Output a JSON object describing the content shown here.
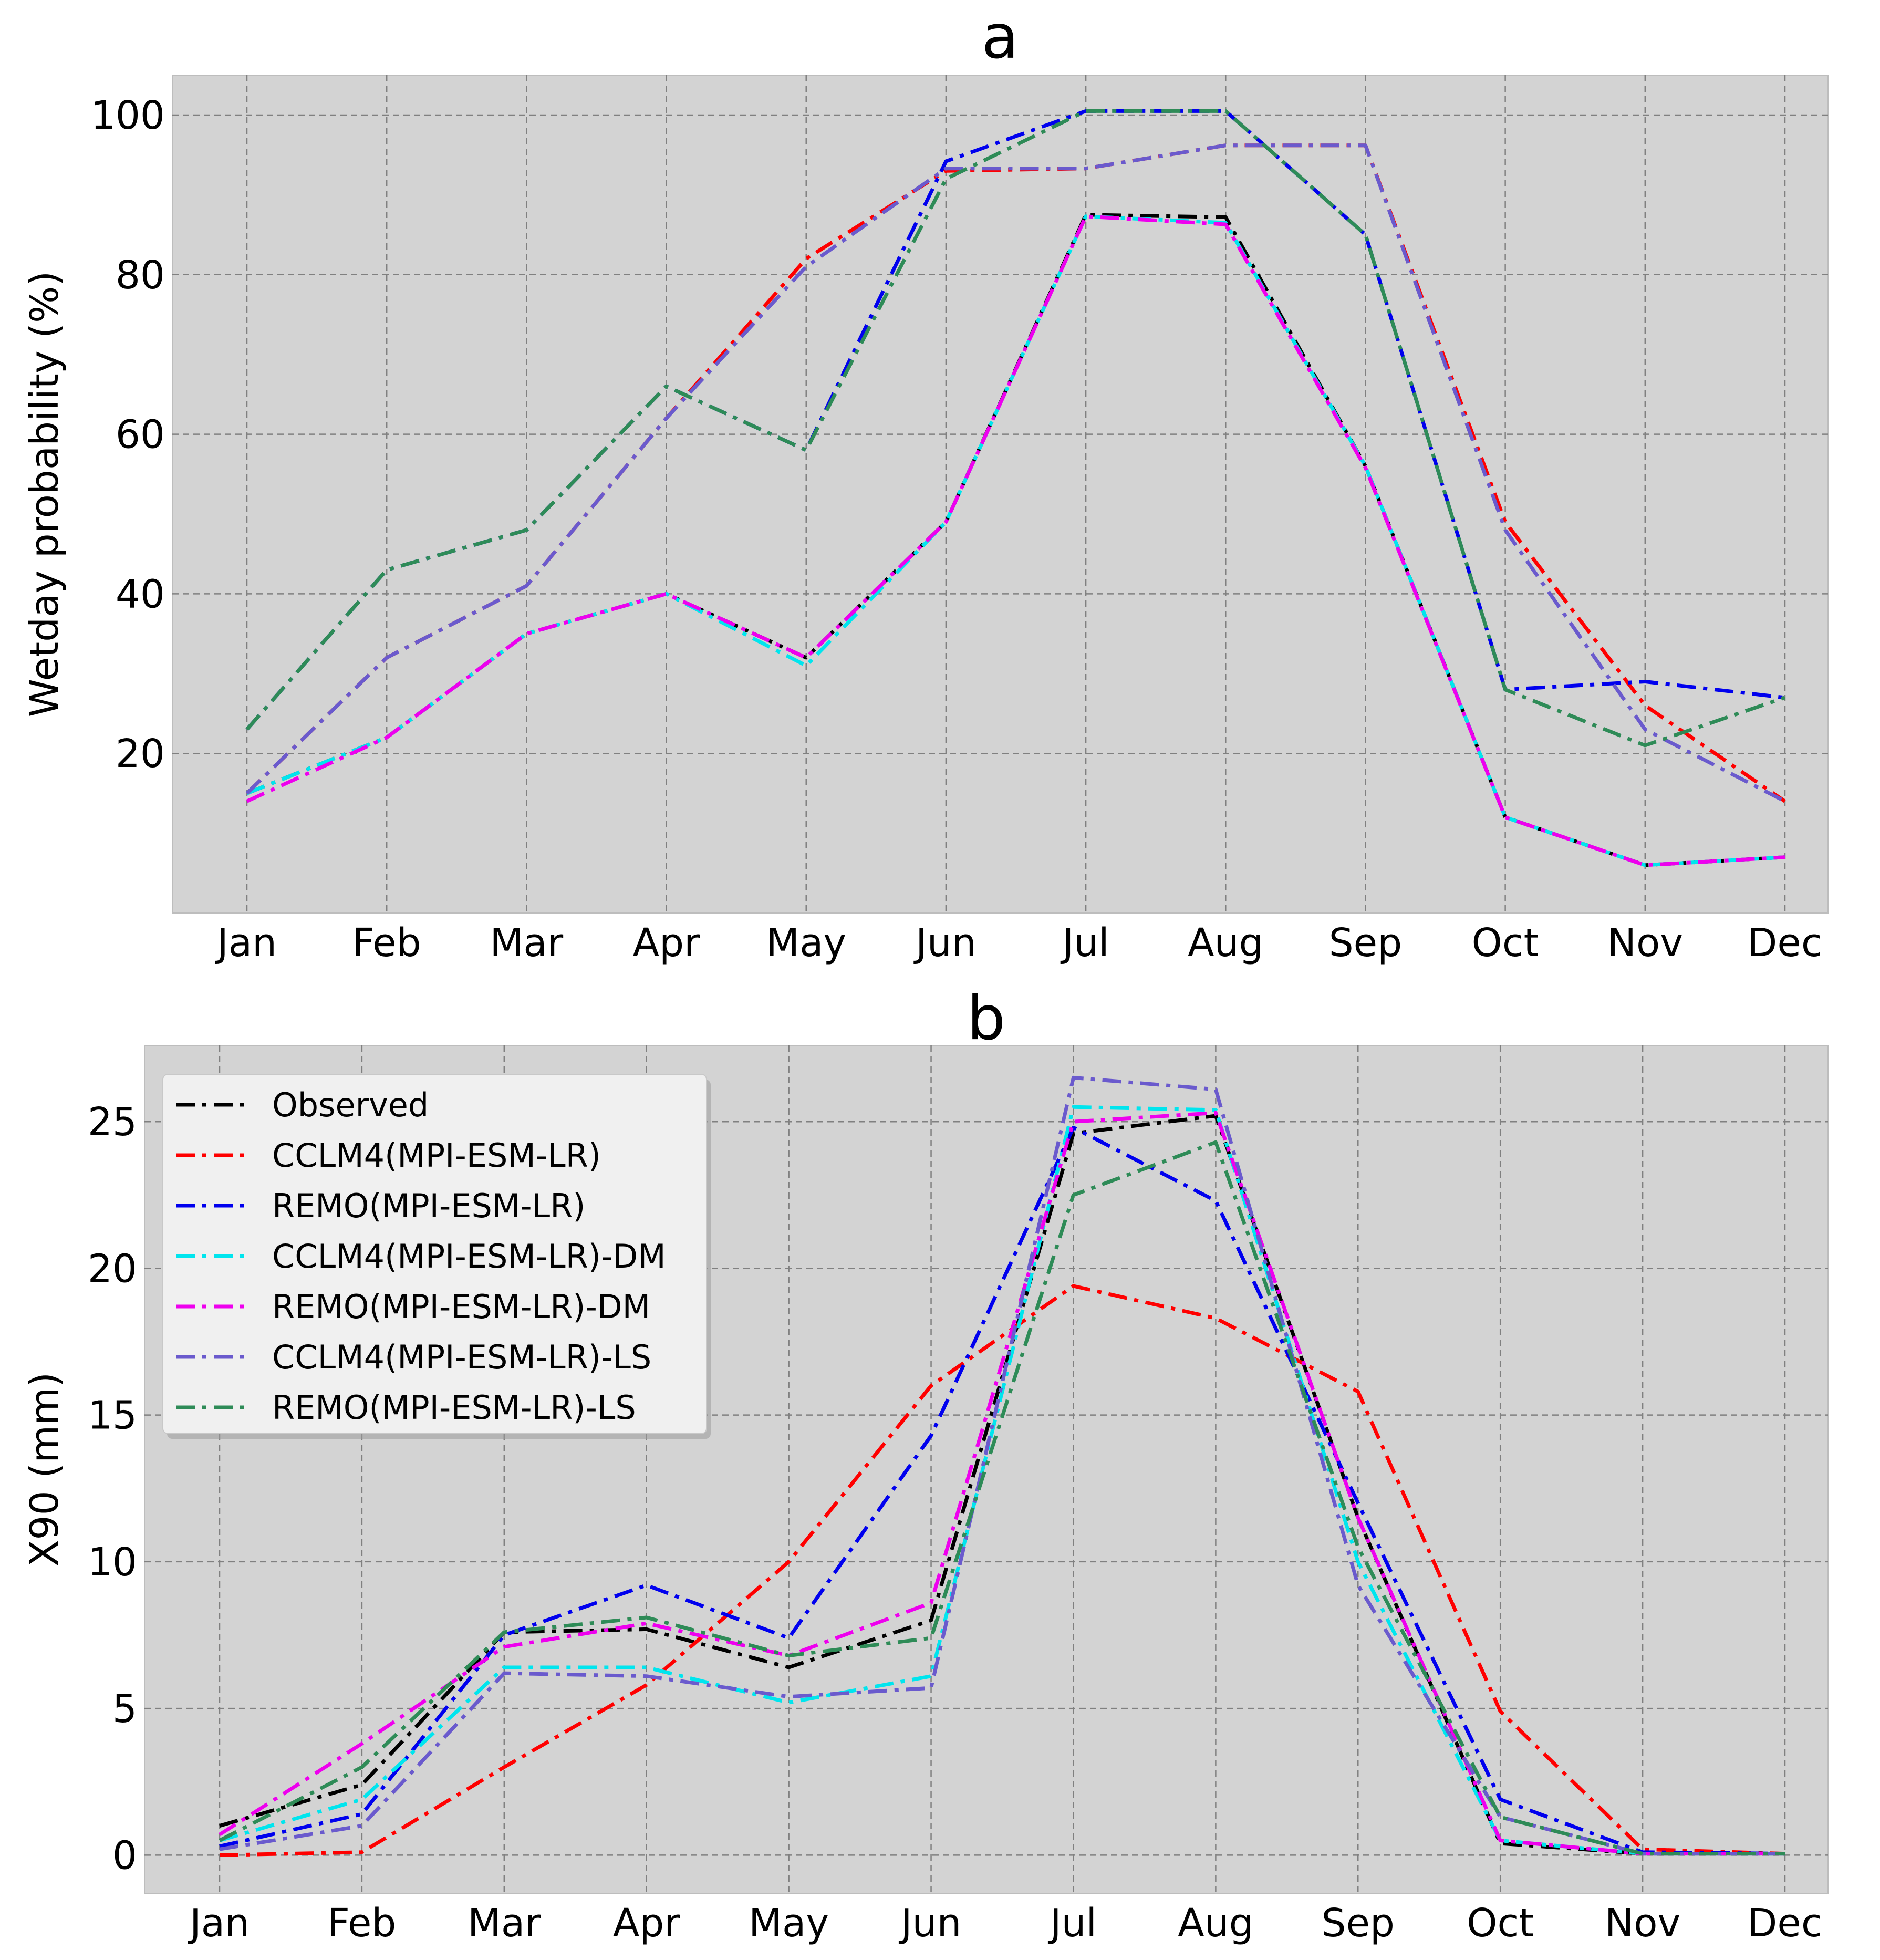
{
  "chart_data": [
    {
      "type": "line",
      "panel": "a",
      "title": "a",
      "xlabel": "",
      "ylabel": "Wetday probability (%)",
      "categories": [
        "Jan",
        "Feb",
        "Mar",
        "Apr",
        "May",
        "Jun",
        "Jul",
        "Aug",
        "Sep",
        "Oct",
        "Nov",
        "Dec"
      ],
      "ylim": [
        0,
        105
      ],
      "yticks": [
        20,
        40,
        60,
        80,
        100
      ],
      "grid": true,
      "series": [
        {
          "name": "Observed",
          "color": "#000000",
          "values": [
            15,
            22,
            35,
            40,
            32,
            49,
            87.5,
            87.2,
            56,
            12,
            6,
            7
          ]
        },
        {
          "name": "CCLM4(MPI-ESM-LR)",
          "color": "#ff0000",
          "values": [
            15,
            32,
            41,
            62,
            82,
            93,
            93.3,
            96.2,
            96.2,
            49,
            26,
            14
          ]
        },
        {
          "name": "REMO(MPI-ESM-LR)",
          "color": "#0000ee",
          "values": [
            23,
            43,
            48,
            66,
            58,
            94.2,
            100.5,
            100.5,
            85,
            28,
            29,
            27
          ]
        },
        {
          "name": "CCLM4(MPI-ESM-LR)-DM",
          "color": "#00e5ee",
          "values": [
            15,
            22,
            35,
            40,
            31,
            49,
            87.3,
            86.5,
            56,
            12,
            6,
            7
          ]
        },
        {
          "name": "REMO(MPI-ESM-LR)-DM",
          "color": "#ee00ee",
          "values": [
            14,
            22,
            35,
            40,
            32,
            49,
            87.3,
            86.3,
            55.8,
            12,
            6,
            7
          ]
        },
        {
          "name": "CCLM4(MPI-ESM-LR)-LS",
          "color": "#6a5acd",
          "values": [
            15,
            32,
            41,
            62,
            81,
            93.3,
            93.3,
            96.2,
            96.2,
            48,
            23,
            14
          ]
        },
        {
          "name": "REMO(MPI-ESM-LR)-LS",
          "color": "#2e8b57",
          "values": [
            23,
            43,
            48,
            66,
            58,
            92,
            100.5,
            100.5,
            85,
            28,
            21,
            27
          ]
        }
      ]
    },
    {
      "type": "line",
      "panel": "b",
      "title": "b",
      "xlabel": "",
      "ylabel": "X90 (mm)",
      "categories": [
        "Jan",
        "Feb",
        "Mar",
        "Apr",
        "May",
        "Jun",
        "Jul",
        "Aug",
        "Sep",
        "Oct",
        "Nov",
        "Dec"
      ],
      "ylim": [
        -1.3,
        27.6
      ],
      "yticks": [
        0,
        5,
        10,
        15,
        20,
        25
      ],
      "grid": true,
      "legend": "top-left",
      "series": [
        {
          "name": "Observed",
          "color": "#000000",
          "values": [
            1.0,
            2.4,
            7.6,
            7.7,
            6.4,
            8.0,
            24.6,
            25.2,
            11.5,
            0.4,
            0.05,
            0.05
          ]
        },
        {
          "name": "CCLM4(MPI-ESM-LR)",
          "color": "#ff0000",
          "values": [
            0.0,
            0.1,
            3.0,
            5.8,
            10.0,
            16.0,
            19.4,
            18.3,
            15.8,
            4.9,
            0.2,
            0.05
          ]
        },
        {
          "name": "REMO(MPI-ESM-LR)",
          "color": "#0000ee",
          "values": [
            0.3,
            1.4,
            7.5,
            9.2,
            7.4,
            14.3,
            24.8,
            22.3,
            12.0,
            1.9,
            0.1,
            0.05
          ]
        },
        {
          "name": "CCLM4(MPI-ESM-LR)-DM",
          "color": "#00e5ee",
          "values": [
            0.5,
            1.9,
            6.4,
            6.4,
            5.2,
            6.1,
            25.5,
            25.4,
            10.0,
            0.5,
            0.05,
            0.05
          ]
        },
        {
          "name": "REMO(MPI-ESM-LR)-DM",
          "color": "#ee00ee",
          "values": [
            0.7,
            3.8,
            7.1,
            7.9,
            6.8,
            8.6,
            25.0,
            25.3,
            11.5,
            0.5,
            0.05,
            0.05
          ]
        },
        {
          "name": "CCLM4(MPI-ESM-LR)-LS",
          "color": "#6a5acd",
          "values": [
            0.2,
            1.0,
            6.2,
            6.1,
            5.4,
            5.7,
            26.5,
            26.1,
            9.2,
            1.3,
            0.05,
            0.05
          ]
        },
        {
          "name": "REMO(MPI-ESM-LR)-LS",
          "color": "#2e8b57",
          "values": [
            0.5,
            3.0,
            7.6,
            8.1,
            6.8,
            7.4,
            22.5,
            24.3,
            10.5,
            1.3,
            0.05,
            0.05
          ]
        }
      ]
    }
  ]
}
